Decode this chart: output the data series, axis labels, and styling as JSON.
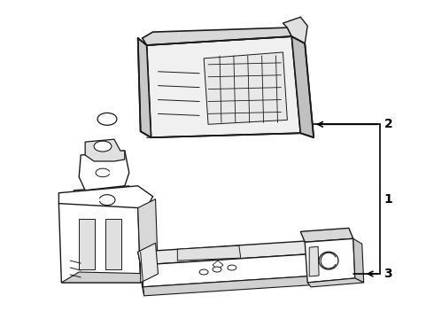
{
  "background_color": "#ffffff",
  "line_color": "#1a1a1a",
  "line_width": 1.0,
  "callout_line_color": "#000000",
  "callout_text_color": "#000000",
  "callout_font_size": 10,
  "callout_font_weight": "bold",
  "fig_width": 4.9,
  "fig_height": 3.6,
  "dpi": 100
}
